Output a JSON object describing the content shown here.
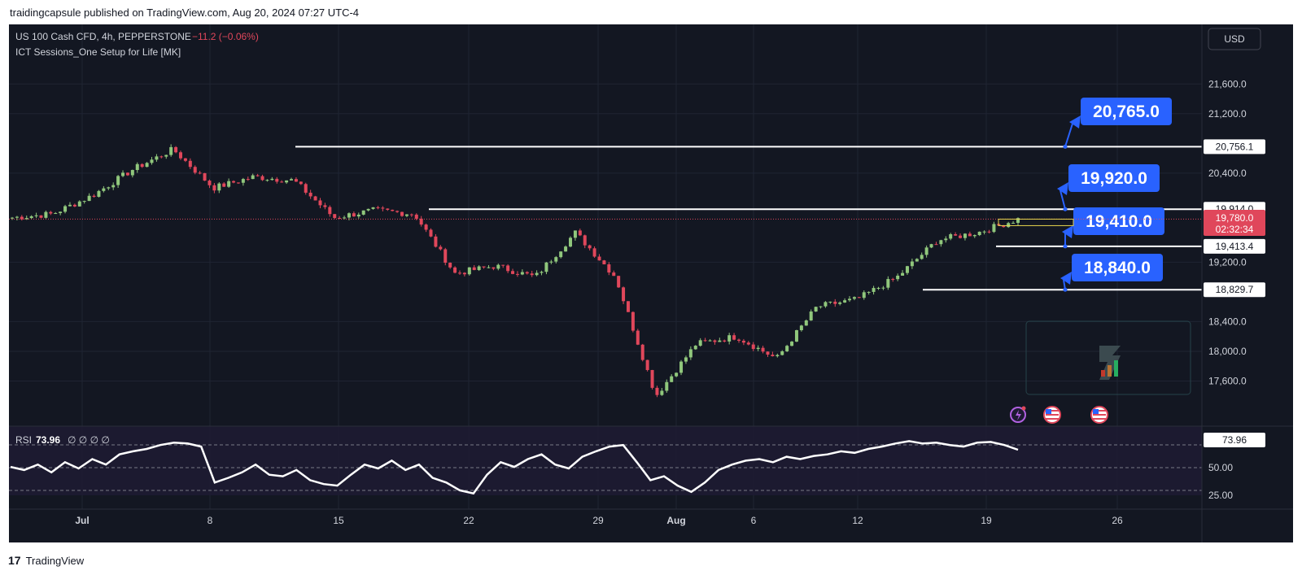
{
  "header": {
    "published_line": "traidingcapsule published on TradingView.com, Aug 20, 2024 07:27 UTC-4"
  },
  "legend": {
    "symbol_line": "US 100 Cash CFD, 4h, PEPPERSTONE",
    "change_text": "−11.2 (−0.06%)",
    "indicator_line": "ICT Sessions_One Setup for Life [MK]",
    "rsi_label": "RSI",
    "rsi_value": "73.96",
    "rsi_extra": "∅ ∅ ∅ ∅"
  },
  "currency_button": "USD",
  "footer": {
    "logo_mark": "17",
    "brand": "TradingView"
  },
  "colors": {
    "background": "#131722",
    "bull": "#90c77c",
    "bear": "#e0475b",
    "label_blue": "#2962ff",
    "price_badge": "#e0475b",
    "rsi_line": "#ffffff"
  },
  "chart_data": [
    {
      "type": "candlestick",
      "title": "US 100 Cash CFD, 4h, PEPPERSTONE",
      "ylim": [
        17200,
        21800
      ],
      "yticks": [
        "21,600.0",
        "21,200.0",
        "20,400.0",
        "19,200.0",
        "18,400.0",
        "18,000.0",
        "17,600.0"
      ],
      "xticks": [
        "Jul",
        "8",
        "15",
        "22",
        "29",
        "Aug",
        "6",
        "12",
        "19",
        "26"
      ],
      "series": [
        {
          "name": "close",
          "date_start": "2024-06-27",
          "date_end": "2024-08-20",
          "x": [
            "Jun 27",
            "Jul 1",
            "Jul 4",
            "Jul 8",
            "Jul 11",
            "Jul 12",
            "Jul 15",
            "Jul 17",
            "Jul 19",
            "Jul 22",
            "Jul 24",
            "Jul 26",
            "Jul 29",
            "Jul 31",
            "Aug 1",
            "Aug 2",
            "Aug 5",
            "Aug 6",
            "Aug 8",
            "Aug 9",
            "Aug 12",
            "Aug 14",
            "Aug 15",
            "Aug 16",
            "Aug 19",
            "Aug 20"
          ],
          "values": [
            19800,
            19850,
            20100,
            20450,
            20720,
            20200,
            20350,
            20300,
            19800,
            19900,
            19850,
            19050,
            19150,
            19000,
            19600,
            19000,
            17400,
            18100,
            18200,
            17900,
            18600,
            18700,
            19000,
            19500,
            19600,
            19780
          ]
        }
      ],
      "horizontal_levels": [
        20756.1,
        19914.0,
        19413.4,
        18829.7
      ],
      "level_labels": [
        "20,756.1",
        "19,914.0",
        "19,413.4",
        "18,829.7"
      ],
      "target_labels": [
        "20,765.0",
        "19,920.0",
        "19,410.0",
        "18,840.0"
      ],
      "current_price": "19,780.0",
      "countdown": "02:32:34"
    },
    {
      "type": "line",
      "title": "RSI",
      "ylim": [
        0,
        100
      ],
      "yticks": [
        "50.00",
        "25.00"
      ],
      "current_value_label": "73.96",
      "series": [
        {
          "name": "RSI",
          "values": [
            52,
            48,
            55,
            45,
            58,
            50,
            62,
            55,
            68,
            72,
            75,
            80,
            83,
            82,
            78,
            32,
            38,
            45,
            55,
            42,
            40,
            48,
            35,
            30,
            28,
            42,
            55,
            50,
            60,
            48,
            55,
            38,
            32,
            22,
            18,
            42,
            58,
            52,
            62,
            68,
            55,
            50,
            65,
            72,
            78,
            80,
            58,
            35,
            40,
            28,
            20,
            32,
            48,
            55,
            60,
            62,
            58,
            65,
            62,
            66,
            68,
            72,
            70,
            75,
            78,
            82,
            85,
            82,
            83,
            80,
            78,
            83,
            84,
            80,
            74
          ]
        }
      ]
    }
  ]
}
